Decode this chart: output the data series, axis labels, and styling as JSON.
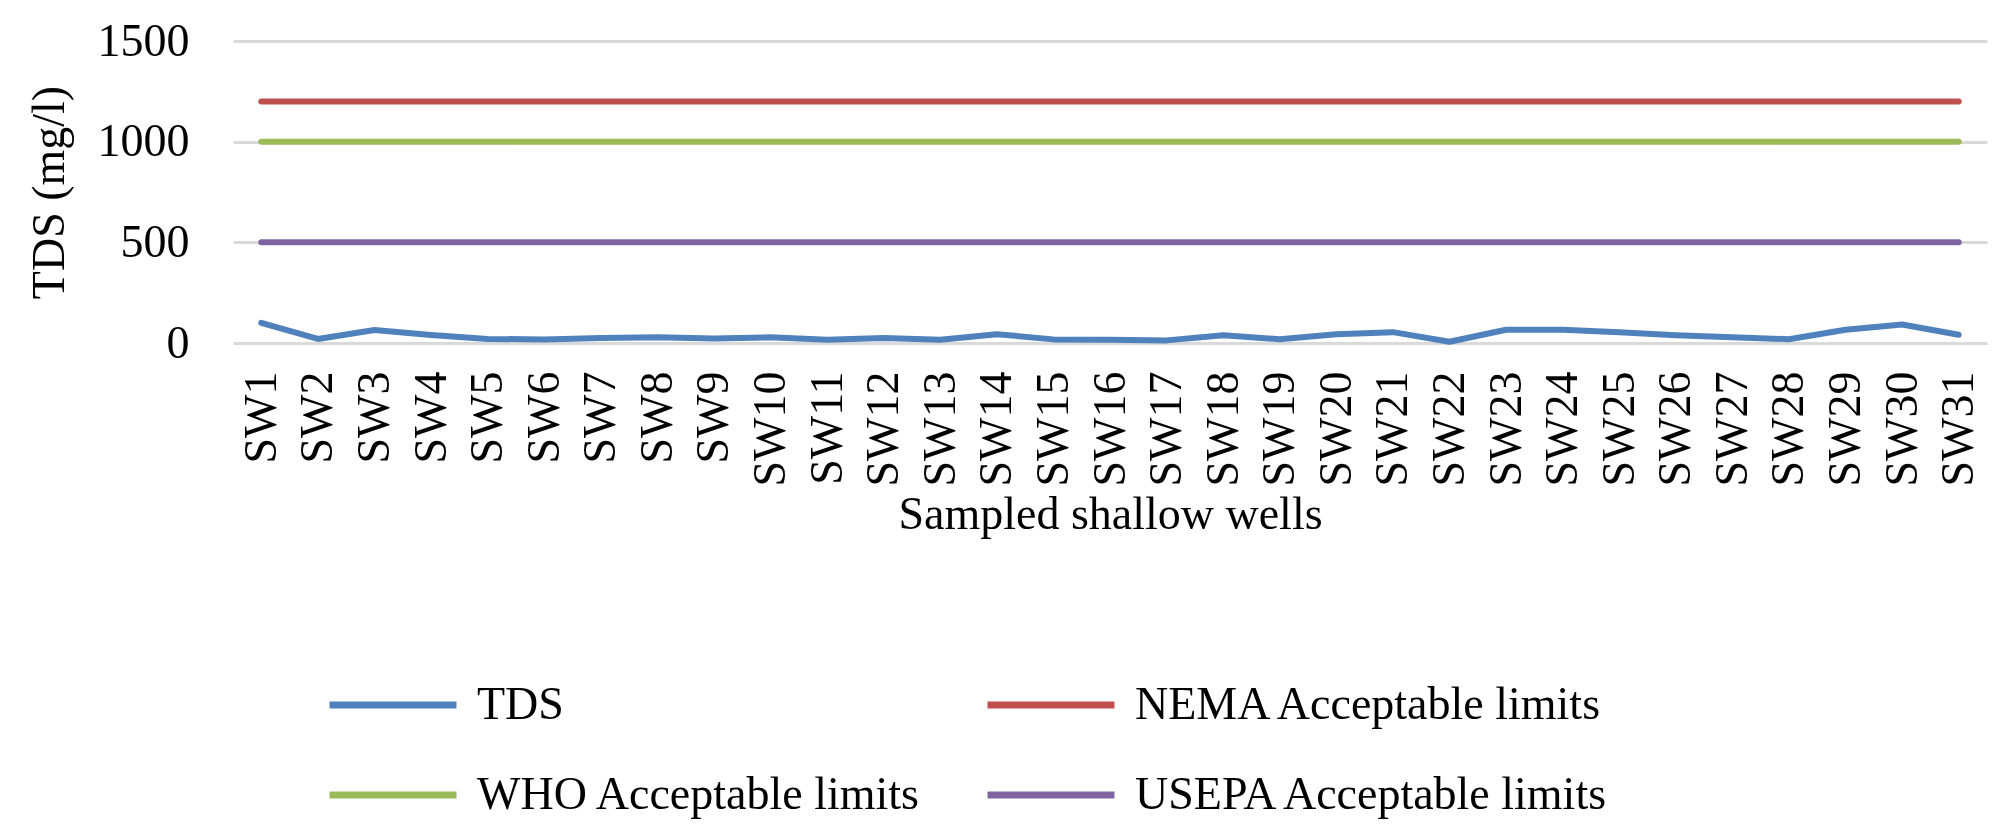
{
  "chart_data": {
    "type": "line",
    "xlabel": "Sampled shallow wells",
    "ylabel": "TDS (mg/l)",
    "categories": [
      "SW1",
      "SW2",
      "SW3",
      "SW4",
      "SW5",
      "SW6",
      "SW7",
      "SW8",
      "SW9",
      "SW10",
      "SW11",
      "SW12",
      "SW13",
      "SW14",
      "SW15",
      "SW16",
      "SW17",
      "SW18",
      "SW19",
      "SW20",
      "SW21",
      "SW22",
      "SW23",
      "SW24",
      "SW25",
      "SW26",
      "SW27",
      "SW28",
      "SW29",
      "SW30",
      "SW31"
    ],
    "series": [
      {
        "name": "TDS",
        "color": "#4f81bd",
        "values": [
          100,
          20,
          65,
          40,
          20,
          18,
          25,
          28,
          22,
          28,
          16,
          25,
          16,
          44,
          18,
          16,
          13,
          38,
          19,
          44,
          54,
          6,
          66,
          66,
          54,
          38,
          28,
          19,
          66,
          92,
          41
        ]
      },
      {
        "name": "NEMA Acceptable limits",
        "color": "#c0504d",
        "values": [
          1200,
          1200,
          1200,
          1200,
          1200,
          1200,
          1200,
          1200,
          1200,
          1200,
          1200,
          1200,
          1200,
          1200,
          1200,
          1200,
          1200,
          1200,
          1200,
          1200,
          1200,
          1200,
          1200,
          1200,
          1200,
          1200,
          1200,
          1200,
          1200,
          1200,
          1200
        ]
      },
      {
        "name": "WHO Acceptable limits",
        "color": "#9bbb59",
        "values": [
          1000,
          1000,
          1000,
          1000,
          1000,
          1000,
          1000,
          1000,
          1000,
          1000,
          1000,
          1000,
          1000,
          1000,
          1000,
          1000,
          1000,
          1000,
          1000,
          1000,
          1000,
          1000,
          1000,
          1000,
          1000,
          1000,
          1000,
          1000,
          1000,
          1000,
          1000
        ]
      },
      {
        "name": "USEPA Acceptable limits",
        "color": "#8064a2",
        "values": [
          500,
          500,
          500,
          500,
          500,
          500,
          500,
          500,
          500,
          500,
          500,
          500,
          500,
          500,
          500,
          500,
          500,
          500,
          500,
          500,
          500,
          500,
          500,
          500,
          500,
          500,
          500,
          500,
          500,
          500,
          500
        ]
      }
    ],
    "ylim": [
      0,
      1500
    ],
    "yticks": [
      0,
      500,
      1000,
      1500
    ],
    "grid": "y",
    "legend": "bottom"
  }
}
